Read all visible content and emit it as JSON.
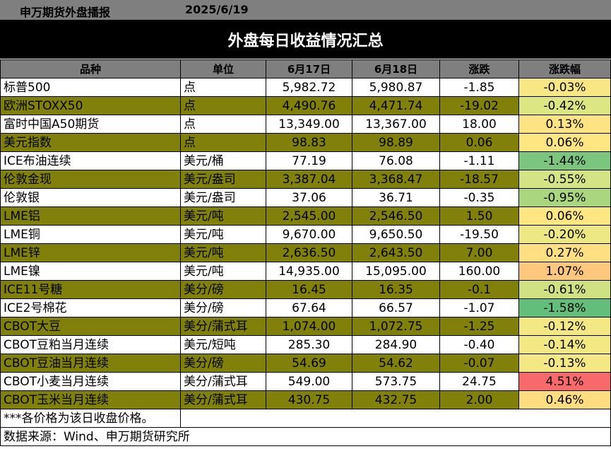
{
  "header": {
    "source_name": "申万期货外盘播报",
    "date": "2025/6/19",
    "title": "外盘每日收益情况汇总"
  },
  "table": {
    "columns": [
      "品种",
      "单位",
      "6月17日",
      "6月18日",
      "涨跌",
      "涨跌幅"
    ],
    "rows": [
      {
        "name": "标普500",
        "unit": "点",
        "d1": "5,982.72",
        "d2": "5,980.87",
        "chg": "-1.85",
        "pct": "-0.03%",
        "pct_color": "#f8e784"
      },
      {
        "name": "欧洲STOXX50",
        "unit": "点",
        "d1": "4,490.76",
        "d2": "4,471.74",
        "chg": "-19.02",
        "pct": "-0.42%",
        "pct_color": "#dce683"
      },
      {
        "name": "富时中国A50期货",
        "unit": "点",
        "d1": "13,349.00",
        "d2": "13,367.00",
        "chg": "18.00",
        "pct": "0.13%",
        "pct_color": "#fee382"
      },
      {
        "name": "美元指数",
        "unit": "点",
        "d1": "98.83",
        "d2": "98.89",
        "chg": "0.06",
        "pct": "0.06%",
        "pct_color": "#fee683"
      },
      {
        "name": "ICE布油连续",
        "unit": "美元/桶",
        "d1": "77.19",
        "d2": "76.08",
        "chg": "-1.11",
        "pct": "-1.44%",
        "pct_color": "#7cc57f"
      },
      {
        "name": "伦敦金现",
        "unit": "美元/盎司",
        "d1": "3,387.04",
        "d2": "3,368.47",
        "chg": "-18.57",
        "pct": "-0.55%",
        "pct_color": "#d4e383"
      },
      {
        "name": "伦敦银",
        "unit": "美元/盎司",
        "d1": "37.06",
        "d2": "36.71",
        "chg": "-0.35",
        "pct": "-0.95%",
        "pct_color": "#abd680"
      },
      {
        "name": "LME铝",
        "unit": "美元/吨",
        "d1": "2,545.00",
        "d2": "2,546.50",
        "chg": "1.50",
        "pct": "0.06%",
        "pct_color": "#fee683"
      },
      {
        "name": "LME铜",
        "unit": "美元/吨",
        "d1": "9,670.00",
        "d2": "9,650.50",
        "chg": "-19.50",
        "pct": "-0.20%",
        "pct_color": "#eee884"
      },
      {
        "name": "LME锌",
        "unit": "美元/吨",
        "d1": "2,636.50",
        "d2": "2,643.50",
        "chg": "7.00",
        "pct": "0.27%",
        "pct_color": "#fee082"
      },
      {
        "name": "LME镍",
        "unit": "美元/吨",
        "d1": "14,935.00",
        "d2": "15,095.00",
        "chg": "160.00",
        "pct": "1.07%",
        "pct_color": "#fdc87d"
      },
      {
        "name": "ICE11号糖",
        "unit": "美分/磅",
        "d1": "16.45",
        "d2": "16.35",
        "chg": "-0.1",
        "pct": "-0.61%",
        "pct_color": "#cfe182"
      },
      {
        "name": "ICE2号棉花",
        "unit": "美分/磅",
        "d1": "67.64",
        "d2": "66.57",
        "chg": "-1.07",
        "pct": "-1.58%",
        "pct_color": "#63be7b"
      },
      {
        "name": "CBOT大豆",
        "unit": "美分/蒲式耳",
        "d1": "1,074.00",
        "d2": "1,072.75",
        "chg": "-1.25",
        "pct": "-0.12%",
        "pct_color": "#f3e884"
      },
      {
        "name": "CBOT豆粕当月连续",
        "unit": "美元/短吨",
        "d1": "285.30",
        "d2": "284.90",
        "chg": "-0.40",
        "pct": "-0.14%",
        "pct_color": "#f2e884"
      },
      {
        "name": "CBOT豆油当月连续",
        "unit": "美分/磅",
        "d1": "54.69",
        "d2": "54.62",
        "chg": "-0.07",
        "pct": "-0.13%",
        "pct_color": "#f3e884"
      },
      {
        "name": "CBOT小麦当月连续",
        "unit": "美分/蒲式耳",
        "d1": "549.00",
        "d2": "573.75",
        "chg": "24.75",
        "pct": "4.51%",
        "pct_color": "#f8696b"
      },
      {
        "name": "CBOT玉米当月连续",
        "unit": "美分/蒲式耳",
        "d1": "430.75",
        "d2": "432.75",
        "chg": "2.00",
        "pct": "0.46%",
        "pct_color": "#fedd81"
      }
    ]
  },
  "footer": {
    "note": "***各价格为该日收盘价格。",
    "source": "数据来源：Wind、申万期货研究所"
  },
  "colors": {
    "header_gray": "#7f7f7f",
    "title_black": "#000000",
    "alt_row_olive": "#80800a"
  }
}
